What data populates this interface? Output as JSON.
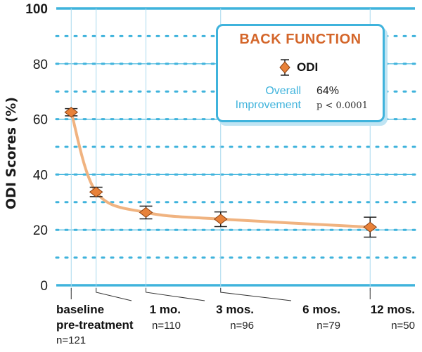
{
  "chart_data": {
    "type": "line",
    "ylabel": "ODI Scores (%)",
    "ylim": [
      0,
      100
    ],
    "yticks": [
      "0",
      "20",
      "40",
      "60",
      "80",
      "100"
    ],
    "categories": [
      {
        "label": "baseline",
        "label2": "pre-treatment",
        "n": "n=121"
      },
      {
        "label": "1 mo.",
        "n": "n=110"
      },
      {
        "label": "3 mos.",
        "n": "n=96"
      },
      {
        "label": "6 mos.",
        "n": "n=79"
      },
      {
        "label": "12 mos.",
        "n": "n=50"
      }
    ],
    "x_months": [
      0,
      1,
      3,
      6,
      12
    ],
    "series": [
      {
        "name": "ODI",
        "values": [
          62.5,
          33.7,
          26.3,
          23.9,
          21.0
        ],
        "error_low": [
          61.2,
          32.0,
          24.0,
          21.2,
          17.4
        ],
        "error_high": [
          63.8,
          35.4,
          28.6,
          26.5,
          24.6
        ],
        "line_color": "#f0b380",
        "marker_color": "#e8823a"
      }
    ],
    "grid": true,
    "grid_color": "#3fb3dc",
    "legend": {
      "title": "BACK FUNCTION",
      "entry": "ODI",
      "stat_label_1": "Overall",
      "stat_label_2": "Improvement",
      "stat_value_1": "64%",
      "stat_value_2": "p < 0.0001",
      "position": "top-right"
    }
  }
}
